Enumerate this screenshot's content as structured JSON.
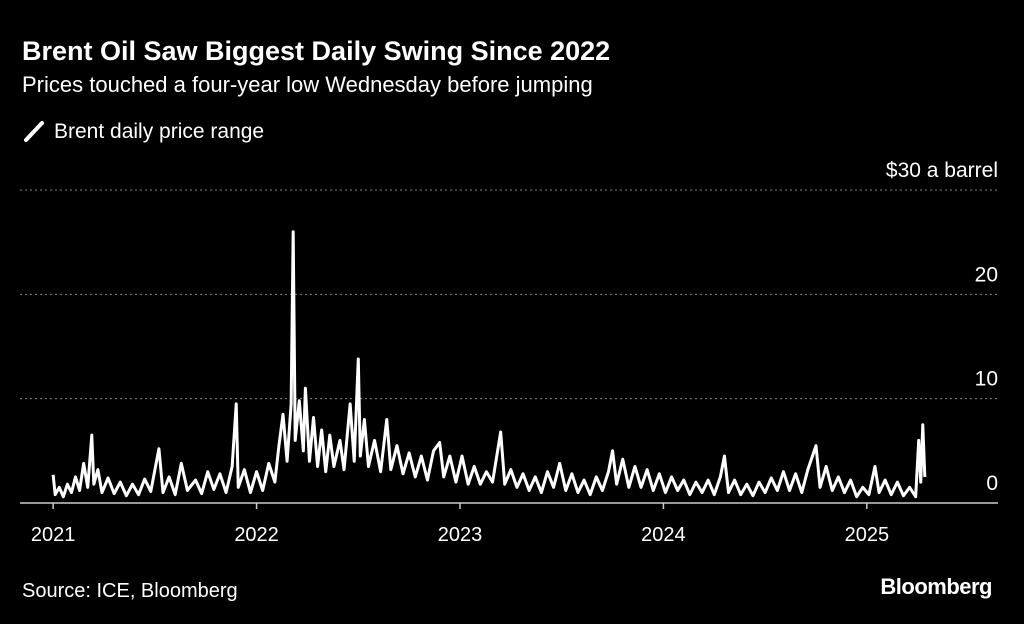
{
  "chart_data": {
    "type": "line",
    "title": "Brent Oil Saw Biggest Daily Swing Since 2022",
    "subtitle": "Prices touched a four-year low Wednesday before jumping",
    "source": "Source: ICE, Bloomberg",
    "logo": "Bloomberg",
    "xlim": [
      2020.96,
      2025.63
    ],
    "xticks": [
      2021,
      2022,
      2023,
      2024,
      2025
    ],
    "ylim": [
      0,
      30
    ],
    "yticks": [
      0,
      10,
      20,
      {
        "value": 30,
        "label": "$30 a barrel"
      }
    ],
    "grid": true,
    "x": [
      2021.0,
      2021.01,
      2021.03,
      2021.05,
      2021.07,
      2021.09,
      2021.11,
      2021.13,
      2021.15,
      2021.17,
      2021.19,
      2021.2,
      2021.22,
      2021.24,
      2021.27,
      2021.3,
      2021.33,
      2021.36,
      2021.39,
      2021.42,
      2021.45,
      2021.48,
      2021.52,
      2021.54,
      2021.57,
      2021.6,
      2021.63,
      2021.66,
      2021.7,
      2021.73,
      2021.76,
      2021.79,
      2021.82,
      2021.85,
      2021.88,
      2021.9,
      2021.91,
      2021.94,
      2021.97,
      2022.0,
      2022.03,
      2022.06,
      2022.09,
      2022.11,
      2022.13,
      2022.15,
      2022.17,
      2022.18,
      2022.19,
      2022.21,
      2022.23,
      2022.24,
      2022.26,
      2022.28,
      2022.3,
      2022.32,
      2022.34,
      2022.36,
      2022.38,
      2022.41,
      2022.43,
      2022.46,
      2022.48,
      2022.5,
      2022.51,
      2022.53,
      2022.55,
      2022.58,
      2022.61,
      2022.64,
      2022.66,
      2022.69,
      2022.72,
      2022.75,
      2022.78,
      2022.81,
      2022.84,
      2022.87,
      2022.9,
      2022.92,
      2022.95,
      2022.98,
      2023.01,
      2023.04,
      2023.07,
      2023.1,
      2023.13,
      2023.16,
      2023.2,
      2023.22,
      2023.25,
      2023.28,
      2023.31,
      2023.34,
      2023.37,
      2023.4,
      2023.43,
      2023.46,
      2023.49,
      2023.52,
      2023.55,
      2023.58,
      2023.61,
      2023.64,
      2023.67,
      2023.7,
      2023.73,
      2023.75,
      2023.77,
      2023.8,
      2023.83,
      2023.86,
      2023.89,
      2023.92,
      2023.95,
      2023.98,
      2024.01,
      2024.04,
      2024.07,
      2024.1,
      2024.13,
      2024.16,
      2024.19,
      2024.22,
      2024.25,
      2024.28,
      2024.3,
      2024.32,
      2024.35,
      2024.38,
      2024.41,
      2024.44,
      2024.47,
      2024.5,
      2024.53,
      2024.56,
      2024.59,
      2024.62,
      2024.65,
      2024.68,
      2024.71,
      2024.75,
      2024.77,
      2024.8,
      2024.83,
      2024.86,
      2024.89,
      2024.92,
      2024.95,
      2024.98,
      2025.01,
      2025.04,
      2025.06,
      2025.09,
      2025.12,
      2025.15,
      2025.18,
      2025.21,
      2025.24,
      2025.255,
      2025.265,
      2025.275,
      2025.285
    ],
    "series": [
      {
        "name": "Brent daily price range",
        "color": "#ffffff",
        "values": [
          2.7,
          0.8,
          1.5,
          0.6,
          1.8,
          1.0,
          2.5,
          1.2,
          3.8,
          1.5,
          6.5,
          1.8,
          3.2,
          1.0,
          2.4,
          0.9,
          2.0,
          0.7,
          1.8,
          0.8,
          2.3,
          1.1,
          5.2,
          1.0,
          2.5,
          0.8,
          3.8,
          1.2,
          2.2,
          0.9,
          3.0,
          1.3,
          2.8,
          1.0,
          3.5,
          9.5,
          1.5,
          3.2,
          1.0,
          3.0,
          1.2,
          3.8,
          2.0,
          5.5,
          8.5,
          4.0,
          9.5,
          26.0,
          6.0,
          9.8,
          5.0,
          11.0,
          4.0,
          8.2,
          3.5,
          7.0,
          3.0,
          6.5,
          3.5,
          6.0,
          3.2,
          9.5,
          4.0,
          13.8,
          4.5,
          8.0,
          3.5,
          6.0,
          3.0,
          8.0,
          3.2,
          5.5,
          2.8,
          4.8,
          2.5,
          4.5,
          2.2,
          5.0,
          5.8,
          2.5,
          4.5,
          2.0,
          4.5,
          1.8,
          3.5,
          1.8,
          3.0,
          2.0,
          6.8,
          1.8,
          3.2,
          1.5,
          2.8,
          1.2,
          2.5,
          1.0,
          3.0,
          1.5,
          3.8,
          1.2,
          2.8,
          1.0,
          2.2,
          0.8,
          2.5,
          1.2,
          3.0,
          5.0,
          1.8,
          4.2,
          1.5,
          3.5,
          1.5,
          3.2,
          1.2,
          2.8,
          1.0,
          2.5,
          1.2,
          2.2,
          0.8,
          2.0,
          1.0,
          2.2,
          0.8,
          2.5,
          4.5,
          1.0,
          2.2,
          0.8,
          1.8,
          0.7,
          2.0,
          1.0,
          2.4,
          1.2,
          3.0,
          1.2,
          2.8,
          1.0,
          3.2,
          5.5,
          1.5,
          3.5,
          1.2,
          2.5,
          1.0,
          2.2,
          0.6,
          1.5,
          0.8,
          3.5,
          1.0,
          2.2,
          0.8,
          2.0,
          0.7,
          1.5,
          0.6,
          6.0,
          2.0,
          7.5,
          2.5
        ]
      }
    ]
  }
}
